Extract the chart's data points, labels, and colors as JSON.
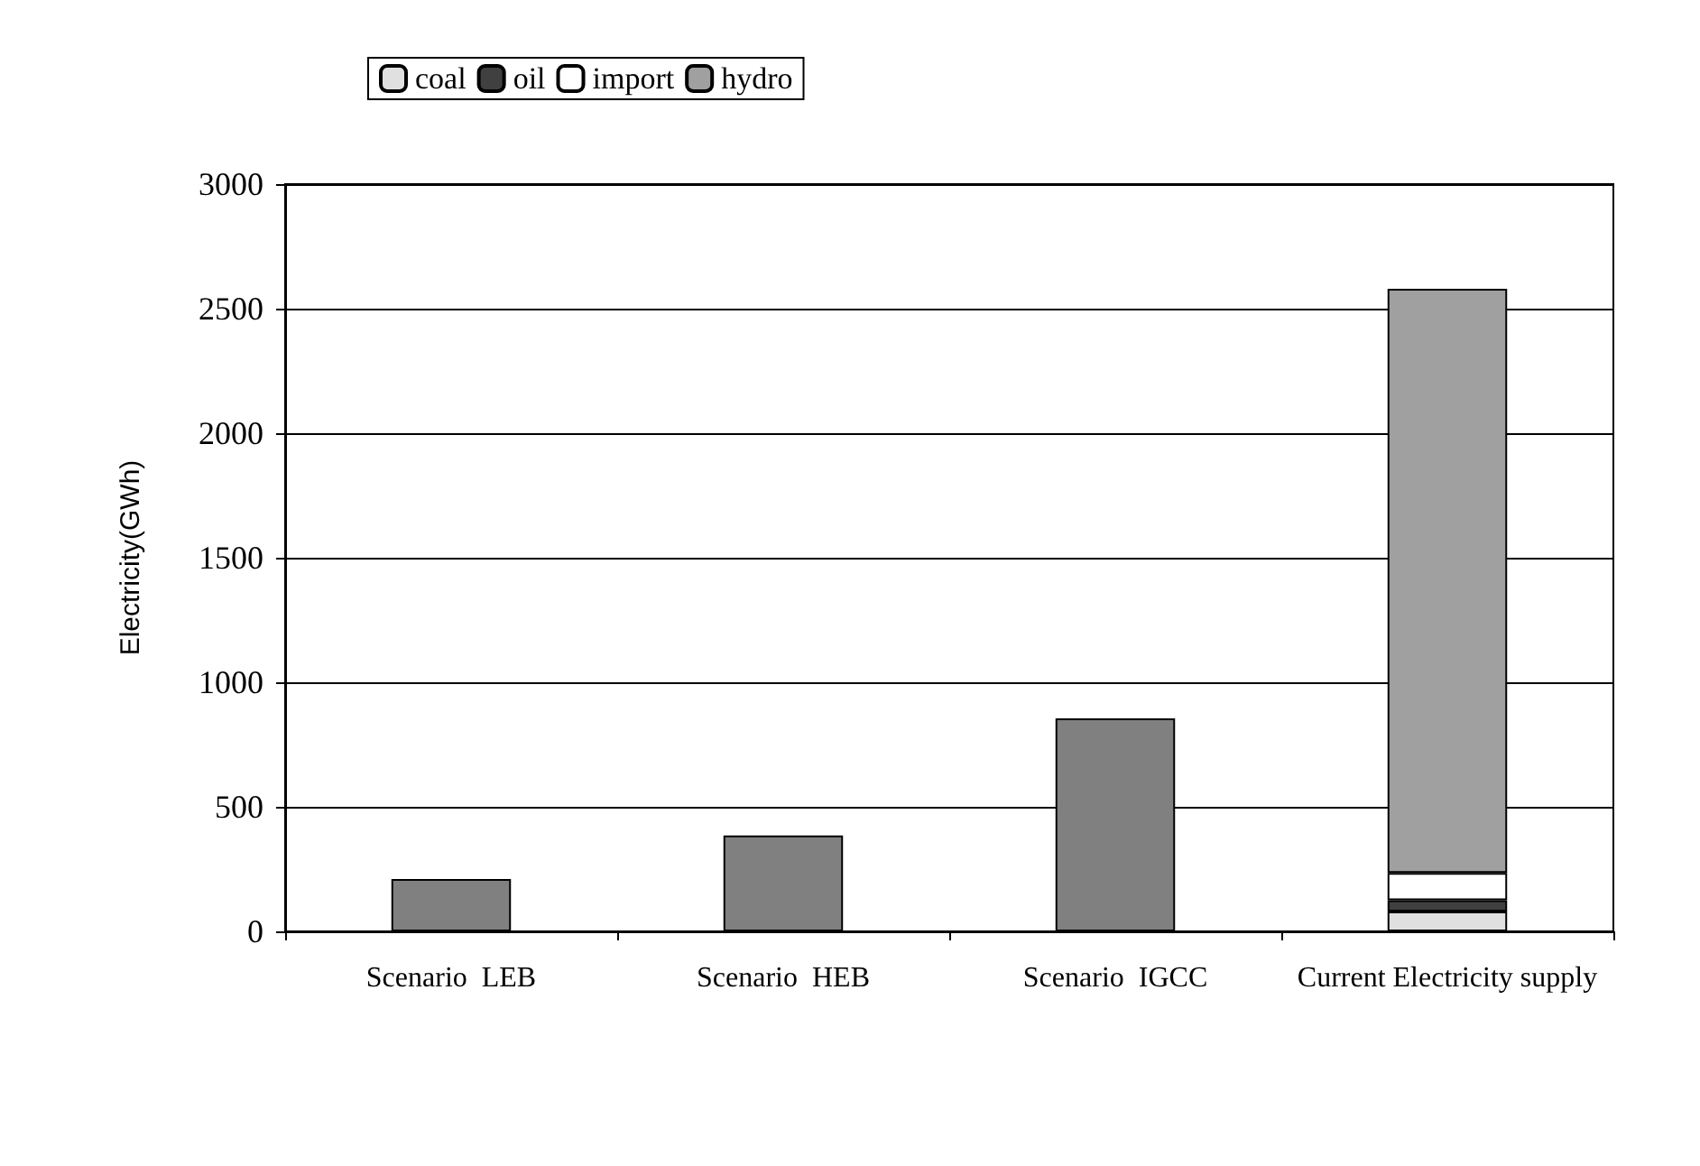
{
  "chart_data": {
    "type": "bar",
    "stacked": true,
    "ylabel": "Electricity(GWh)",
    "categories": [
      "Scenario  LEB",
      "Scenario  HEB",
      "Scenario  IGCC",
      "Current Electricity supply"
    ],
    "series": [
      {
        "color": "#808080",
        "values": [
          210,
          385,
          855,
          null
        ]
      },
      {
        "name": "coal",
        "color": "#e0e0e0",
        "values": [
          null,
          null,
          null,
          80
        ]
      },
      {
        "name": "oil",
        "color": "#404040",
        "values": [
          null,
          null,
          null,
          45
        ]
      },
      {
        "name": "import",
        "color": "#ffffff",
        "values": [
          null,
          null,
          null,
          110
        ]
      },
      {
        "name": "hydro",
        "color": "#a0a0a0",
        "values": [
          null,
          null,
          null,
          2345
        ]
      }
    ],
    "ylim": [
      0,
      3000
    ],
    "yticks": [
      0,
      500,
      1000,
      1500,
      2000,
      2500,
      3000
    ],
    "grid": "y",
    "legend": "top left"
  }
}
